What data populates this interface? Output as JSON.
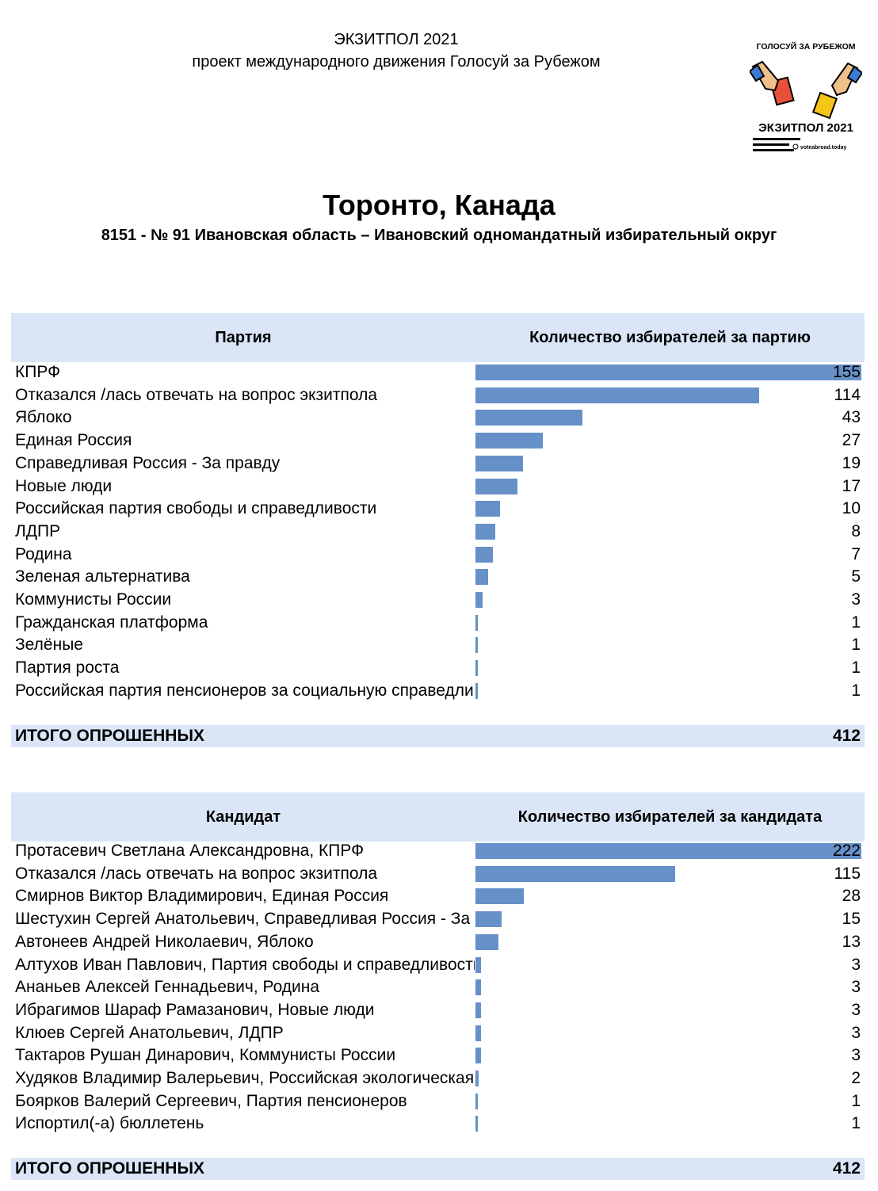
{
  "header": {
    "line1": "ЭКЗИТПОЛ 2021",
    "line2": "проект международного движения Голосуй за Рубежом"
  },
  "logo": {
    "top_text": "ГОЛОСУЙ ЗА РУБЕЖОМ",
    "bottom_text": "ЭКЗИТПОЛ 2021",
    "site": "voteabroad.today"
  },
  "title": {
    "city": "Торонто, Канада",
    "district": "8151 - № 91 Ивановская область – Ивановский одномандатный избирательный округ"
  },
  "colors": {
    "bar": "#6690c8",
    "header_bg": "#dae6f8"
  },
  "parties": {
    "col1": "Партия",
    "col2": "Количество избирателей за партию",
    "max": 155,
    "rows": [
      {
        "label": "КПРФ",
        "value": 155
      },
      {
        "label": "Отказался /лась отвечать на вопрос экзитпола",
        "value": 114
      },
      {
        "label": "Яблоко",
        "value": 43
      },
      {
        "label": "Единая Россия",
        "value": 27
      },
      {
        "label": "Справедливая Россия - За правду",
        "value": 19
      },
      {
        "label": "Новые люди",
        "value": 17
      },
      {
        "label": "Российская партия свободы и справедливости",
        "value": 10
      },
      {
        "label": "ЛДПР",
        "value": 8
      },
      {
        "label": "Родина",
        "value": 7
      },
      {
        "label": "Зеленая альтернатива",
        "value": 5
      },
      {
        "label": "Коммунисты России",
        "value": 3
      },
      {
        "label": "Гражданская платформа",
        "value": 1
      },
      {
        "label": "Зелёные",
        "value": 1
      },
      {
        "label": "Партия роста",
        "value": 1
      },
      {
        "label": "Российская партия пенсионеров за социальную справедливость",
        "value": 1
      }
    ],
    "total_label": "ИТОГО ОПРОШЕННЫХ",
    "total_value": "412"
  },
  "candidates": {
    "col1": "Кандидат",
    "col2": "Количество избирателей за кандидата",
    "max": 222,
    "rows": [
      {
        "label": "Протасевич Светлана Александровна, КПРФ",
        "value": 222
      },
      {
        "label": "Отказался /лась отвечать на вопрос экзитпола",
        "value": 115
      },
      {
        "label": "Смирнов Виктор Владимирович, Единая Россия",
        "value": 28
      },
      {
        "label": "Шестухин Сергей Анатольевич, Справедливая Россия - За правду",
        "value": 15
      },
      {
        "label": "Автонеев Андрей Николаевич, Яблоко",
        "value": 13
      },
      {
        "label": "Алтухов Иван Павлович, Партия свободы и справедливости",
        "value": 3
      },
      {
        "label": "Ананьев Алексей Геннадьевич, Родина",
        "value": 3
      },
      {
        "label": "Ибрагимов Шараф Рамазанович, Новые люди",
        "value": 3
      },
      {
        "label": "Клюев Сергей Анатольевич, ЛДПР",
        "value": 3
      },
      {
        "label": "Тактаров Рушан Динарович, Коммунисты России",
        "value": 3
      },
      {
        "label": "Худяков Владимир Валерьевич, Российская экологическая партия Зеленые",
        "value": 2
      },
      {
        "label": "Боярков Валерий Сергеевич, Партия пенсионеров",
        "value": 1
      },
      {
        "label": "Испортил(-а) бюллетень",
        "value": 1
      }
    ],
    "total_label": "ИТОГО ОПРОШЕННЫХ",
    "total_value": "412"
  }
}
